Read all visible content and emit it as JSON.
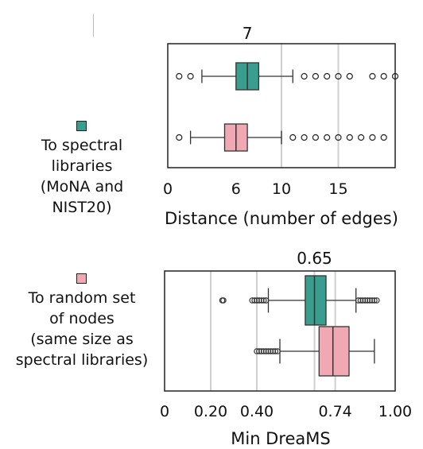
{
  "legend": [
    {
      "label_lines": [
        "To spectral",
        "libraries",
        "(MoNA and",
        "NIST20)"
      ],
      "color": "#3a9e8f"
    },
    {
      "label_lines": [
        "To random set",
        "of nodes",
        "(same size as",
        "spectral libraries)"
      ],
      "color": "#f0a8b3"
    }
  ],
  "chart_data": [
    {
      "type": "boxplot",
      "orientation": "horizontal",
      "xlabel": "Distance (number of edges)",
      "xlim": [
        0,
        20
      ],
      "xticks": [
        0,
        6,
        10,
        15
      ],
      "xtick_labels": [
        "0",
        "6",
        "10",
        "15"
      ],
      "gridlines": [
        10,
        15
      ],
      "annotation": {
        "text": "7",
        "x": 7
      },
      "boxes": [
        {
          "series": "To spectral libraries",
          "color": "#3a9e8f",
          "whisker_low": 3,
          "q1": 6,
          "median": 7,
          "q3": 8,
          "whisker_high": 11,
          "outliers": [
            1,
            2,
            12,
            13,
            14,
            15,
            16,
            18,
            19,
            20
          ]
        },
        {
          "series": "To random set of nodes",
          "color": "#f0a8b3",
          "whisker_low": 2,
          "q1": 5,
          "median": 6,
          "q3": 7,
          "whisker_high": 10,
          "outliers": [
            1,
            11,
            12,
            13,
            14,
            15,
            16,
            17,
            18,
            19
          ]
        }
      ]
    },
    {
      "type": "boxplot",
      "orientation": "horizontal",
      "xlabel": "Min DreaMS",
      "xlim": [
        0,
        1.0
      ],
      "xticks": [
        0,
        0.2,
        0.4,
        0.74,
        1.0
      ],
      "xtick_labels": [
        "0",
        "0.20",
        "0.40",
        "0.74",
        "1.00"
      ],
      "gridlines": [
        0.2,
        0.4,
        0.65,
        0.74
      ],
      "annotation": {
        "text": "0.65",
        "x": 0.65
      },
      "boxes": [
        {
          "series": "To spectral libraries",
          "color": "#3a9e8f",
          "whisker_low": 0.45,
          "q1": 0.61,
          "median": 0.65,
          "q3": 0.7,
          "whisker_high": 0.83,
          "outliers": [
            0.25,
            0.255,
            0.38,
            0.39,
            0.4,
            0.41,
            0.42,
            0.43,
            0.44,
            0.84,
            0.85,
            0.86,
            0.87,
            0.88,
            0.89,
            0.9,
            0.91,
            0.92
          ]
        },
        {
          "series": "To random set of nodes",
          "color": "#f0a8b3",
          "whisker_low": 0.5,
          "q1": 0.67,
          "median": 0.73,
          "q3": 0.8,
          "whisker_high": 0.91,
          "outliers": [
            0.4,
            0.41,
            0.42,
            0.43,
            0.44,
            0.45,
            0.46,
            0.47,
            0.48,
            0.49
          ]
        }
      ]
    }
  ]
}
